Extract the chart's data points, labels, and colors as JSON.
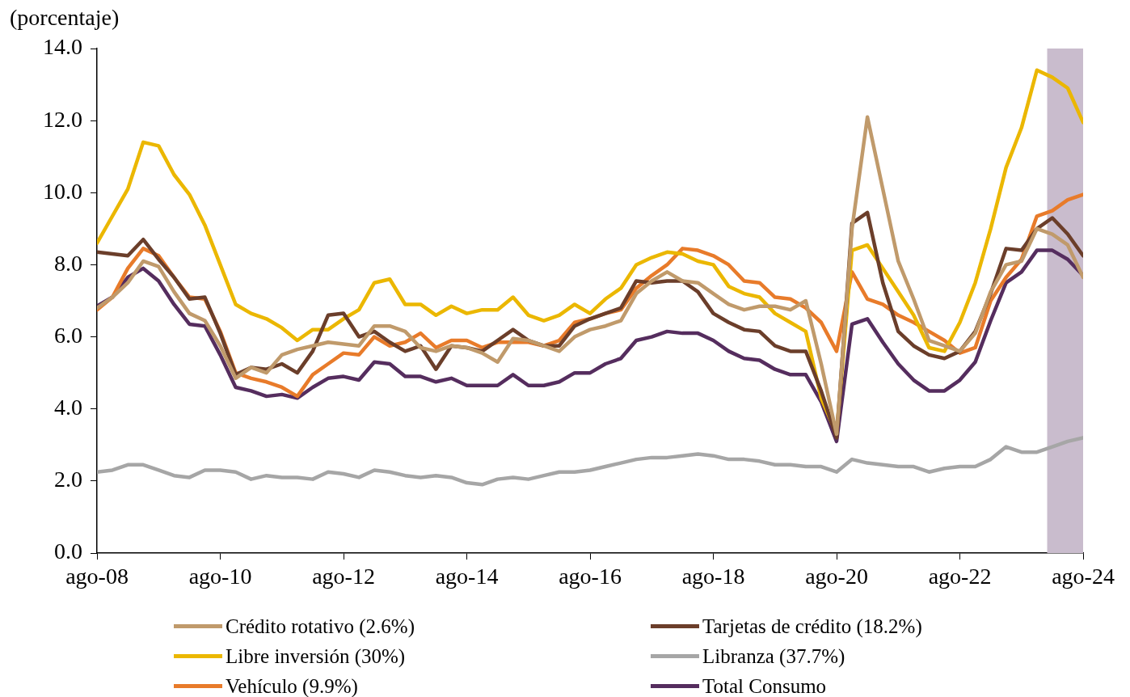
{
  "chart_data": {
    "type": "line",
    "ylabel": "(porcentaje)",
    "x": [
      "2008-08",
      "2008-11",
      "2009-02",
      "2009-05",
      "2009-08",
      "2009-11",
      "2010-02",
      "2010-05",
      "2010-08",
      "2010-11",
      "2011-02",
      "2011-05",
      "2011-08",
      "2011-11",
      "2012-02",
      "2012-05",
      "2012-08",
      "2012-11",
      "2013-02",
      "2013-05",
      "2013-08",
      "2013-11",
      "2014-02",
      "2014-05",
      "2014-08",
      "2014-11",
      "2015-02",
      "2015-05",
      "2015-08",
      "2015-11",
      "2016-02",
      "2016-05",
      "2016-08",
      "2016-11",
      "2017-02",
      "2017-05",
      "2017-08",
      "2017-11",
      "2018-02",
      "2018-05",
      "2018-08",
      "2018-11",
      "2019-02",
      "2019-05",
      "2019-08",
      "2019-11",
      "2020-02",
      "2020-05",
      "2020-08",
      "2020-11",
      "2021-02",
      "2021-05",
      "2021-08",
      "2021-11",
      "2022-02",
      "2022-05",
      "2022-08",
      "2022-11",
      "2023-02",
      "2023-05",
      "2023-08",
      "2023-11",
      "2024-02",
      "2024-05",
      "2024-08"
    ],
    "series": [
      {
        "name": "Crédito rotativo (2.6%)",
        "color": "#c09a6b",
        "values": [
          6.8,
          7.1,
          7.5,
          8.1,
          7.95,
          7.25,
          6.65,
          6.45,
          5.75,
          4.85,
          5.15,
          5.0,
          5.5,
          5.65,
          5.75,
          5.85,
          5.8,
          5.75,
          6.3,
          6.3,
          6.15,
          5.7,
          5.6,
          5.75,
          5.7,
          5.55,
          5.3,
          5.95,
          5.9,
          5.75,
          5.6,
          6.0,
          6.2,
          6.3,
          6.45,
          7.2,
          7.55,
          7.8,
          7.55,
          7.5,
          7.2,
          6.9,
          6.75,
          6.85,
          6.85,
          6.75,
          7.0,
          5.25,
          3.3,
          9.0,
          12.1,
          10.1,
          8.1,
          7.05,
          5.9,
          5.75,
          5.6,
          6.1,
          7.25,
          8.0,
          8.1,
          9.0,
          8.85,
          8.55,
          7.65
        ]
      },
      {
        "name": "Tarjetas de crédito (18.2%)",
        "color": "#6b3e2a",
        "values": [
          8.35,
          8.3,
          8.25,
          8.7,
          8.15,
          7.65,
          7.05,
          7.1,
          6.1,
          4.95,
          5.15,
          5.1,
          5.25,
          5.0,
          5.6,
          6.6,
          6.65,
          6.0,
          6.15,
          5.85,
          5.6,
          5.75,
          5.1,
          5.75,
          5.7,
          5.6,
          5.9,
          6.2,
          5.9,
          5.75,
          5.75,
          6.3,
          6.5,
          6.65,
          6.8,
          7.55,
          7.5,
          7.55,
          7.55,
          7.25,
          6.65,
          6.4,
          6.2,
          6.15,
          5.75,
          5.6,
          5.6,
          4.5,
          3.2,
          9.15,
          9.45,
          7.5,
          6.15,
          5.75,
          5.5,
          5.4,
          5.6,
          6.15,
          7.2,
          8.45,
          8.4,
          9.0,
          9.3,
          8.85,
          8.25
        ]
      },
      {
        "name": "Libre inversión (30%)",
        "color": "#ebb700",
        "values": [
          8.6,
          9.35,
          10.1,
          11.4,
          11.3,
          10.5,
          9.95,
          9.1,
          8.0,
          6.9,
          6.65,
          6.5,
          6.25,
          5.9,
          6.2,
          6.2,
          6.5,
          6.75,
          7.5,
          7.6,
          6.9,
          6.9,
          6.6,
          6.85,
          6.65,
          6.75,
          6.75,
          7.1,
          6.6,
          6.45,
          6.6,
          6.9,
          6.65,
          7.05,
          7.35,
          8.0,
          8.2,
          8.35,
          8.3,
          8.1,
          8.0,
          7.4,
          7.2,
          7.1,
          6.65,
          6.4,
          6.15,
          4.3,
          3.3,
          8.4,
          8.55,
          7.9,
          7.25,
          6.6,
          5.7,
          5.6,
          6.4,
          7.5,
          9.0,
          10.7,
          11.8,
          13.4,
          13.2,
          12.9,
          11.95
        ]
      },
      {
        "name": "Libranza (37.7%)",
        "color": "#a6a6a6",
        "values": [
          2.25,
          2.3,
          2.45,
          2.45,
          2.3,
          2.15,
          2.1,
          2.3,
          2.3,
          2.25,
          2.05,
          2.15,
          2.1,
          2.1,
          2.05,
          2.25,
          2.2,
          2.1,
          2.3,
          2.25,
          2.15,
          2.1,
          2.15,
          2.1,
          1.95,
          1.9,
          2.05,
          2.1,
          2.05,
          2.15,
          2.25,
          2.25,
          2.3,
          2.4,
          2.5,
          2.6,
          2.65,
          2.65,
          2.7,
          2.75,
          2.7,
          2.6,
          2.6,
          2.55,
          2.45,
          2.45,
          2.4,
          2.4,
          2.25,
          2.6,
          2.5,
          2.45,
          2.4,
          2.4,
          2.25,
          2.35,
          2.4,
          2.4,
          2.6,
          2.95,
          2.8,
          2.8,
          2.95,
          3.1,
          3.2
        ]
      },
      {
        "name": "Vehículo (9.9%)",
        "color": "#e87b2a",
        "values": [
          6.75,
          7.1,
          7.9,
          8.45,
          8.25,
          7.65,
          7.1,
          7.05,
          6.15,
          5.0,
          4.85,
          4.75,
          4.6,
          4.35,
          4.95,
          5.25,
          5.55,
          5.5,
          6.0,
          5.75,
          5.85,
          6.1,
          5.7,
          5.9,
          5.9,
          5.7,
          5.85,
          5.85,
          5.85,
          5.75,
          5.9,
          6.4,
          6.5,
          6.65,
          6.75,
          7.35,
          7.7,
          8.0,
          8.45,
          8.4,
          8.25,
          8.0,
          7.55,
          7.5,
          7.1,
          7.05,
          6.8,
          6.4,
          5.6,
          7.8,
          7.05,
          6.9,
          6.6,
          6.4,
          6.15,
          5.9,
          5.55,
          5.7,
          7.0,
          7.65,
          8.15,
          9.35,
          9.5,
          9.8,
          9.95
        ]
      },
      {
        "name": "Total Consumo",
        "color": "#552d5e",
        "values": [
          6.85,
          7.1,
          7.65,
          7.9,
          7.55,
          6.9,
          6.35,
          6.3,
          5.5,
          4.6,
          4.5,
          4.35,
          4.4,
          4.3,
          4.6,
          4.85,
          4.9,
          4.8,
          5.3,
          5.25,
          4.9,
          4.9,
          4.75,
          4.85,
          4.65,
          4.65,
          4.65,
          4.95,
          4.65,
          4.65,
          4.75,
          5.0,
          5.0,
          5.25,
          5.4,
          5.9,
          6.0,
          6.15,
          6.1,
          6.1,
          5.9,
          5.6,
          5.4,
          5.35,
          5.1,
          4.95,
          4.95,
          4.2,
          3.1,
          6.35,
          6.5,
          5.85,
          5.25,
          4.8,
          4.5,
          4.5,
          4.8,
          5.3,
          6.45,
          7.5,
          7.8,
          8.4,
          8.4,
          8.15,
          7.7
        ]
      }
    ],
    "xlim": [
      "2008-08",
      "2024-08"
    ],
    "xticks": [
      {
        "value": "2008-08",
        "label": "ago-08"
      },
      {
        "value": "2010-08",
        "label": "ago-10"
      },
      {
        "value": "2012-08",
        "label": "ago-12"
      },
      {
        "value": "2014-08",
        "label": "ago-14"
      },
      {
        "value": "2016-08",
        "label": "ago-16"
      },
      {
        "value": "2018-08",
        "label": "ago-18"
      },
      {
        "value": "2020-08",
        "label": "ago-20"
      },
      {
        "value": "2022-08",
        "label": "ago-22"
      },
      {
        "value": "2024-08",
        "label": "ago-24"
      }
    ],
    "ylim": [
      0,
      14
    ],
    "yticks": [
      {
        "value": 0,
        "label": "0.0"
      },
      {
        "value": 2,
        "label": "2.0"
      },
      {
        "value": 4,
        "label": "4.0"
      },
      {
        "value": 6,
        "label": "6.0"
      },
      {
        "value": 8,
        "label": "8.0"
      },
      {
        "value": 10,
        "label": "10.0"
      },
      {
        "value": 12,
        "label": "12.0"
      },
      {
        "value": 14,
        "label": "14.0"
      }
    ],
    "bands": [
      {
        "axis": "x",
        "from": "2024-01",
        "to": "2024-08",
        "color": "#c9bccd"
      }
    ],
    "grid": false,
    "legend": "bottom",
    "marker": "none",
    "line_style": "solid"
  }
}
